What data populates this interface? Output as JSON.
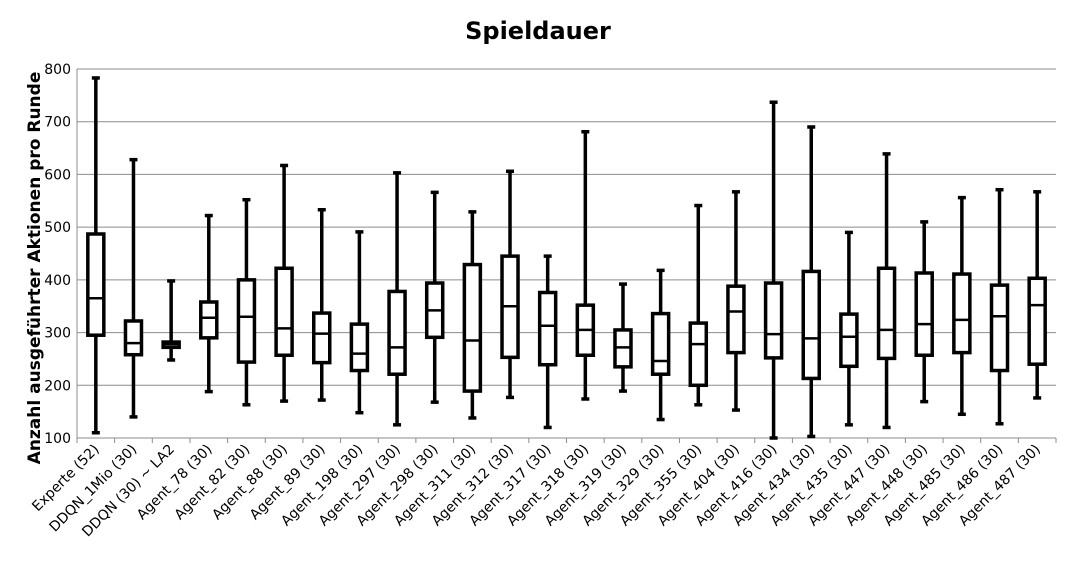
{
  "chart_data": {
    "type": "boxplot",
    "title": "Spieldauer",
    "xlabel": "",
    "ylabel": "Anzahl ausgeführter Aktionen pro Runde",
    "ylim": [
      100,
      800
    ],
    "yticks": [
      100,
      200,
      300,
      400,
      500,
      600,
      700,
      800
    ],
    "grid": true,
    "categories": [
      "Experte (52)",
      "DDQN_1Mio (30)",
      "DDQN (30) ~ LA2",
      "Agent_78 (30)",
      "Agent_82 (30)",
      "Agent_88 (30)",
      "Agent_89 (30)",
      "Agent_198 (30)",
      "Agent_297 (30)",
      "Agent_298 (30)",
      "Agent_311 (30)",
      "Agent_312 (30)",
      "Agent_317 (30)",
      "Agent_318 (30)",
      "Agent_319 (30)",
      "Agent_329 (30)",
      "Agent_355 (30)",
      "Agent_404 (30)",
      "Agent_416 (30)",
      "Agent_434 (30)",
      "Agent_435 (30)",
      "Agent_447 (30)",
      "Agent_448 (30)",
      "Agent_485 (30)",
      "Agent_486 (30)",
      "Agent_487 (30)"
    ],
    "boxes": [
      {
        "min": 110,
        "q1": 295,
        "median": 365,
        "q3": 487,
        "max": 783
      },
      {
        "min": 140,
        "q1": 258,
        "median": 280,
        "q3": 322,
        "max": 628
      },
      {
        "min": 248,
        "q1": 272,
        "median": 278,
        "q3": 282,
        "max": 398
      },
      {
        "min": 188,
        "q1": 290,
        "median": 328,
        "q3": 358,
        "max": 522
      },
      {
        "min": 163,
        "q1": 244,
        "median": 330,
        "q3": 400,
        "max": 552
      },
      {
        "min": 170,
        "q1": 257,
        "median": 308,
        "q3": 422,
        "max": 617
      },
      {
        "min": 172,
        "q1": 243,
        "median": 298,
        "q3": 337,
        "max": 533
      },
      {
        "min": 148,
        "q1": 228,
        "median": 260,
        "q3": 316,
        "max": 491
      },
      {
        "min": 125,
        "q1": 221,
        "median": 272,
        "q3": 378,
        "max": 603
      },
      {
        "min": 168,
        "q1": 291,
        "median": 342,
        "q3": 394,
        "max": 566
      },
      {
        "min": 138,
        "q1": 189,
        "median": 285,
        "q3": 429,
        "max": 529
      },
      {
        "min": 177,
        "q1": 253,
        "median": 350,
        "q3": 445,
        "max": 606
      },
      {
        "min": 120,
        "q1": 239,
        "median": 313,
        "q3": 376,
        "max": 445
      },
      {
        "min": 174,
        "q1": 257,
        "median": 305,
        "q3": 352,
        "max": 681
      },
      {
        "min": 189,
        "q1": 235,
        "median": 272,
        "q3": 305,
        "max": 392
      },
      {
        "min": 135,
        "q1": 221,
        "median": 246,
        "q3": 336,
        "max": 418
      },
      {
        "min": 163,
        "q1": 200,
        "median": 278,
        "q3": 318,
        "max": 541
      },
      {
        "min": 153,
        "q1": 262,
        "median": 340,
        "q3": 388,
        "max": 567
      },
      {
        "min": 100,
        "q1": 252,
        "median": 297,
        "q3": 394,
        "max": 737
      },
      {
        "min": 103,
        "q1": 213,
        "median": 289,
        "q3": 416,
        "max": 690
      },
      {
        "min": 125,
        "q1": 236,
        "median": 292,
        "q3": 335,
        "max": 490
      },
      {
        "min": 120,
        "q1": 251,
        "median": 305,
        "q3": 422,
        "max": 639
      },
      {
        "min": 169,
        "q1": 257,
        "median": 316,
        "q3": 413,
        "max": 510
      },
      {
        "min": 145,
        "q1": 262,
        "median": 324,
        "q3": 411,
        "max": 556
      },
      {
        "min": 127,
        "q1": 228,
        "median": 331,
        "q3": 390,
        "max": 571
      },
      {
        "min": 176,
        "q1": 240,
        "median": 352,
        "q3": 403,
        "max": 567
      }
    ]
  }
}
